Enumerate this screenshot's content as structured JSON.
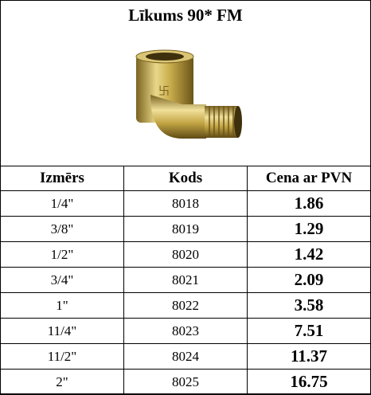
{
  "header": {
    "title": "Līkums 90* FM"
  },
  "table": {
    "columns": [
      "Izmērs",
      "Kods",
      "Cena ar PVN"
    ],
    "rows": [
      [
        "1/4\"",
        "8018",
        "1.86"
      ],
      [
        "3/8\"",
        "8019",
        "1.29"
      ],
      [
        "1/2\"",
        "8020",
        "1.42"
      ],
      [
        "3/4\"",
        "8021",
        "2.09"
      ],
      [
        "1\"",
        "8022",
        "3.58"
      ],
      [
        "11/4\"",
        "8023",
        "7.51"
      ],
      [
        "11/2\"",
        "8024",
        "11.37"
      ],
      [
        "2\"",
        "8025",
        "16.75"
      ]
    ]
  }
}
